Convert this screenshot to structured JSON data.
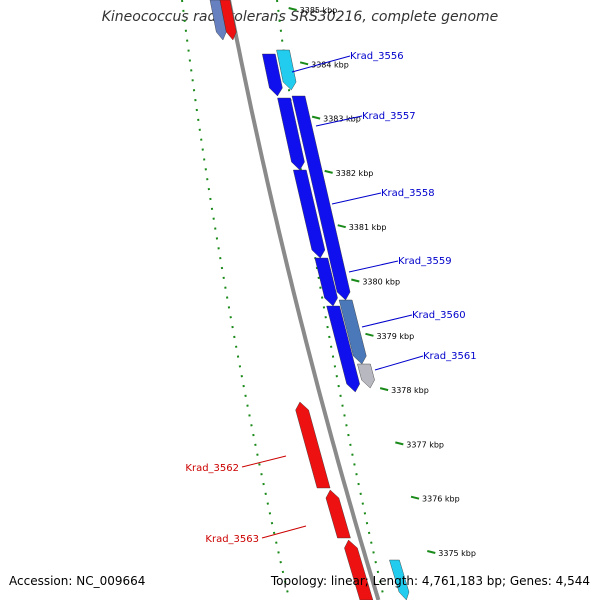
{
  "title": "Kineococcus radiotolerans SRS30216, complete genome",
  "footer": {
    "accession": "Accession: NC_009664",
    "stats": "Topology: linear; Length: 4,761,183 bp; Genes: 4,544"
  },
  "colors": {
    "forward": "#1010ee",
    "forward_light": "#22ccee",
    "forward_mid": "#4a78b8",
    "forward_gray": "#b8b8c0",
    "reverse": "#ee1111",
    "backbone": "#8a8a8a",
    "dotted_track": "#1a8a1a"
  },
  "ticks": [
    {
      "label": "3385 kbp",
      "kbp": 3385
    },
    {
      "label": "3384 kbp",
      "kbp": 3384
    },
    {
      "label": "3383 kbp",
      "kbp": 3383
    },
    {
      "label": "3382 kbp",
      "kbp": 3382
    },
    {
      "label": "3381 kbp",
      "kbp": 3381
    },
    {
      "label": "3380 kbp",
      "kbp": 3380
    },
    {
      "label": "3379 kbp",
      "kbp": 3379
    },
    {
      "label": "3378 kbp",
      "kbp": 3378
    },
    {
      "label": "3377 kbp",
      "kbp": 3377
    },
    {
      "label": "3376 kbp",
      "kbp": 3376
    },
    {
      "label": "3375 kbp",
      "kbp": 3375
    }
  ],
  "forward_labels": [
    {
      "label": "Krad_3556"
    },
    {
      "label": "Krad_3557"
    },
    {
      "label": "Krad_3558"
    },
    {
      "label": "Krad_3559"
    },
    {
      "label": "Krad_3560"
    },
    {
      "label": "Krad_3561"
    }
  ],
  "reverse_labels": [
    {
      "label": "Krad_3562"
    },
    {
      "label": "Krad_3563"
    }
  ]
}
